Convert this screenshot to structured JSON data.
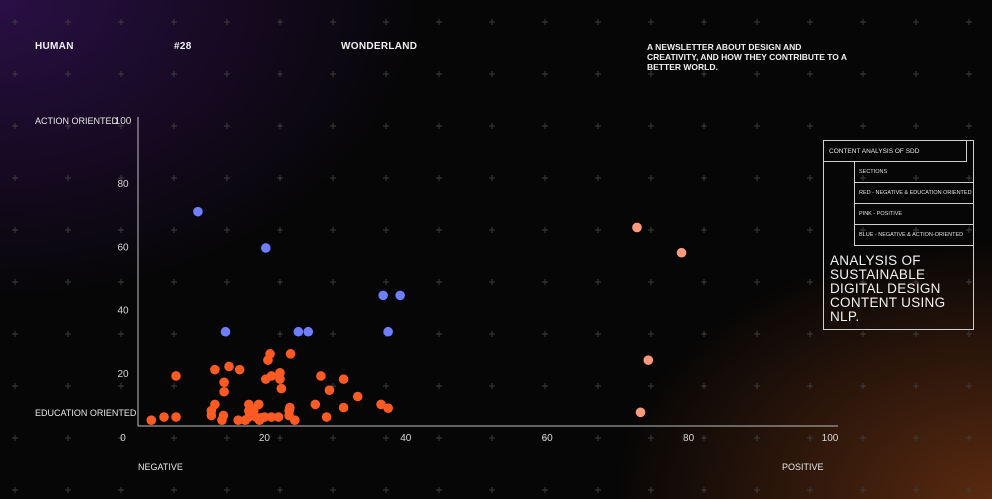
{
  "header": {
    "brand1": "HUMAN",
    "issue": "#28",
    "brand2": "WONDERLAND",
    "tagline": "A NEWSLETTER ABOUT DESIGN AND CREATIVITY, AND HOW THEY CONTRIBUTE TO A BETTER WORLD."
  },
  "legend": {
    "title": "CONTENT ANALYSIS OF SDD",
    "items": [
      "SECTIONS",
      "RED - NEGATIVE & EDUCATION ORIENTED",
      "PINK - POSITIVE",
      "BLUE - NEGATIVE & ACTION-ORIENTED"
    ],
    "headline": "ANALYSIS OF SUSTAINABLE DIGITAL DESIGN CONTENT USING NLP."
  },
  "colors": {
    "red": "#ff5a24",
    "pink": "#ff9a7c",
    "blue": "#6f7dff",
    "axis": "#bdbdbd",
    "grid_mark": "#3c3c3c"
  },
  "chart_data": {
    "type": "scatter",
    "xlim": [
      0,
      100
    ],
    "ylim": [
      0,
      100
    ],
    "x_ticks": [
      0,
      20,
      40,
      60,
      80,
      100
    ],
    "y_ticks": [
      20,
      40,
      60,
      80,
      100
    ],
    "labels": {
      "y_top": "ACTION ORIENTED",
      "y_bottom": "EDUCATION ORIENTED",
      "x_left": "NEGATIVE",
      "x_right": "POSITIVE"
    },
    "series": [
      {
        "name": "RED - NEGATIVE & EDUCATION ORIENTED",
        "color_key": "red",
        "points": [
          [
            4,
            5
          ],
          [
            5.8,
            6
          ],
          [
            7.5,
            6
          ],
          [
            7.5,
            19
          ],
          [
            12.5,
            6.5
          ],
          [
            12.5,
            8
          ],
          [
            13,
            21
          ],
          [
            13,
            10
          ],
          [
            14,
            5
          ],
          [
            14.2,
            6.5
          ],
          [
            14.3,
            17
          ],
          [
            14.3,
            14
          ],
          [
            15,
            22
          ],
          [
            16.3,
            5
          ],
          [
            16.5,
            21
          ],
          [
            17.3,
            5
          ],
          [
            17.8,
            6
          ],
          [
            17.8,
            8
          ],
          [
            17.8,
            10
          ],
          [
            18,
            9
          ],
          [
            18.5,
            8
          ],
          [
            18.8,
            6
          ],
          [
            19.2,
            10
          ],
          [
            19.3,
            5
          ],
          [
            19.6,
            5.8
          ],
          [
            20,
            6
          ],
          [
            20.2,
            18
          ],
          [
            20.5,
            24
          ],
          [
            20.8,
            26
          ],
          [
            21,
            19
          ],
          [
            21,
            6
          ],
          [
            22,
            6
          ],
          [
            22.2,
            20
          ],
          [
            22.2,
            18
          ],
          [
            22.4,
            15
          ],
          [
            23.5,
            8
          ],
          [
            23.5,
            6.5
          ],
          [
            23.6,
            9
          ],
          [
            23.7,
            26
          ],
          [
            24.3,
            5
          ],
          [
            27.2,
            10
          ],
          [
            28,
            19
          ],
          [
            28.8,
            6
          ],
          [
            29.2,
            14.5
          ],
          [
            31.2,
            9
          ],
          [
            31.2,
            18
          ],
          [
            33.2,
            12.5
          ],
          [
            36.5,
            10
          ],
          [
            37.5,
            8.8
          ]
        ]
      },
      {
        "name": "PINK - POSITIVE",
        "color_key": "pink",
        "points": [
          [
            72.7,
            66
          ],
          [
            79,
            58
          ],
          [
            74.3,
            24
          ],
          [
            73.2,
            7.5
          ]
        ]
      },
      {
        "name": "BLUE - NEGATIVE & ACTION-ORIENTED",
        "color_key": "blue",
        "points": [
          [
            10.6,
            71
          ],
          [
            20.2,
            59.5
          ],
          [
            14.5,
            33
          ],
          [
            24.8,
            33
          ],
          [
            26.2,
            33
          ],
          [
            36.8,
            44.5
          ],
          [
            37.5,
            33
          ],
          [
            39.2,
            44.5
          ]
        ]
      }
    ]
  }
}
